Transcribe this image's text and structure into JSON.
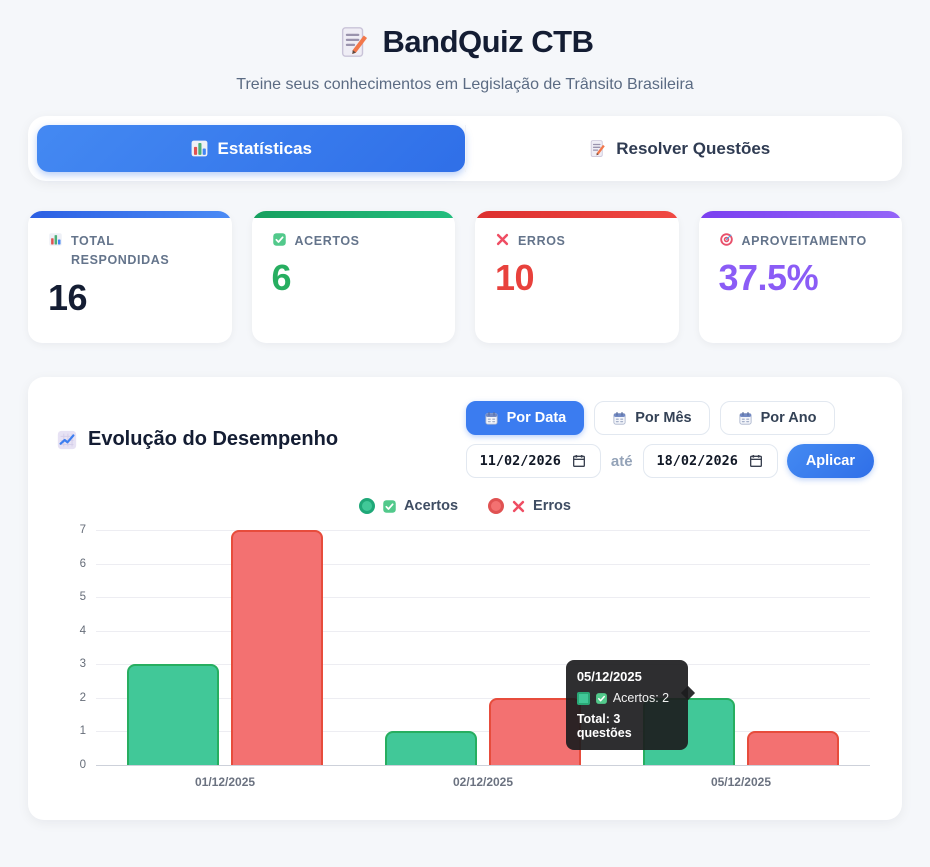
{
  "header": {
    "icon": "memo-icon",
    "title": "BandQuiz CTB",
    "subtitle": "Treine seus conhecimentos em Legislação de Trânsito Brasileira"
  },
  "tabs": [
    {
      "id": "estatisticas",
      "icon": "bar-chart-icon",
      "label": "Estatísticas",
      "active": true
    },
    {
      "id": "resolver-questoes",
      "icon": "memo-icon",
      "label": "Resolver Questões",
      "active": false
    }
  ],
  "stats": [
    {
      "id": "total-respondidas",
      "icon": "bar-chart-icon",
      "label": "Total Respondidas",
      "value": "16",
      "value_color": "#141d33",
      "accent_from": "#2b5fe3",
      "accent_to": "#4b8bf5"
    },
    {
      "id": "acertos",
      "icon": "check-icon",
      "label": "Acertos",
      "value": "6",
      "value_color": "#27ae60",
      "accent_from": "#16a05f",
      "accent_to": "#23bd7e"
    },
    {
      "id": "erros",
      "icon": "cross-icon",
      "label": "Erros",
      "value": "10",
      "value_color": "#e8413c",
      "accent_from": "#dc2f2f",
      "accent_to": "#f04943"
    },
    {
      "id": "aproveitamento",
      "icon": "target-icon",
      "label": "Aproveitamento",
      "value": "37.5%",
      "value_color": "#8b5cf6",
      "accent_from": "#7a3ff0",
      "accent_to": "#9465f8"
    }
  ],
  "performance": {
    "title": "Evolução do Desempenho",
    "title_icon": "chart-up-icon",
    "filters": [
      {
        "id": "por-data",
        "icon": "calendar-icon",
        "label": "Por Data",
        "active": true
      },
      {
        "id": "por-mes",
        "icon": "calendar-icon",
        "label": "Por Mês",
        "active": false
      },
      {
        "id": "por-ano",
        "icon": "calendar-icon",
        "label": "Por Ano",
        "active": false
      }
    ],
    "date_from": "11/02/2026",
    "date_to": "18/02/2026",
    "range_separator": "até",
    "apply_label": "Aplicar",
    "legend": [
      {
        "icon": "check-icon",
        "label": "Acertos",
        "fill": "#41c898",
        "border": "#1fa878"
      },
      {
        "icon": "cross-icon",
        "label": "Erros",
        "fill": "#f37171",
        "border": "#e05252"
      }
    ]
  },
  "tooltip": {
    "title": "05/12/2025",
    "swatch_fill": "#41c898",
    "swatch_border": "#2aa876",
    "icon": "check-icon",
    "series_line": "Acertos: 2",
    "footer": "Total: 3 questões"
  },
  "chart_data": {
    "type": "bar",
    "categories": [
      "01/12/2025",
      "02/12/2025",
      "05/12/2025"
    ],
    "series": [
      {
        "name": "Acertos",
        "values": [
          3,
          1,
          2
        ],
        "fill": "#41c898",
        "border": "#27ae60"
      },
      {
        "name": "Erros",
        "values": [
          7,
          2,
          1
        ],
        "fill": "#f37171",
        "border": "#e74c3c"
      }
    ],
    "ylim": [
      0,
      7
    ],
    "yticks": [
      0,
      1,
      2,
      3,
      4,
      5,
      6,
      7
    ],
    "grid": true,
    "legend_position": "top",
    "xlabel": "",
    "ylabel": ""
  }
}
